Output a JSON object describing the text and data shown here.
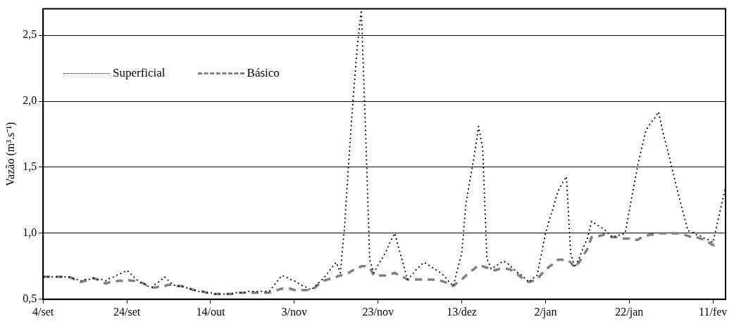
{
  "chart_data": {
    "type": "line",
    "ylabel": "Vazão (m³.s⁻¹)",
    "ylim": [
      0.5,
      2.7
    ],
    "categories": [
      "4/set",
      null,
      null,
      null,
      null,
      null,
      null,
      null,
      null,
      null,
      null,
      null,
      null,
      null,
      null,
      null,
      null,
      null,
      null,
      null,
      "24/set",
      null,
      null,
      null,
      null,
      null,
      null,
      null,
      null,
      null,
      null,
      null,
      null,
      null,
      null,
      null,
      null,
      null,
      null,
      null,
      "14/out",
      null,
      null,
      null,
      null,
      null,
      null,
      null,
      null,
      null,
      null,
      null,
      null,
      null,
      null,
      null,
      null,
      null,
      null,
      null,
      "3/nov",
      null,
      null,
      null,
      null,
      null,
      null,
      null,
      null,
      null,
      null,
      null,
      null,
      null,
      null,
      null,
      null,
      null,
      null,
      null,
      "23/nov",
      null,
      null,
      null,
      null,
      null,
      null,
      null,
      null,
      null,
      null,
      null,
      null,
      null,
      null,
      null,
      null,
      null,
      null,
      null,
      "13/dez",
      null,
      null,
      null,
      null,
      null,
      null,
      null,
      null,
      null,
      null,
      null,
      null,
      null,
      null,
      null,
      null,
      null,
      null,
      null,
      "2/jan",
      null,
      null,
      null,
      null,
      null,
      null,
      null,
      null,
      null,
      null,
      null,
      null,
      null,
      null,
      null,
      null,
      null,
      null,
      null,
      "22/jan",
      null,
      null,
      null,
      null,
      null,
      null,
      null,
      null,
      null,
      null,
      null,
      null,
      null,
      null,
      null,
      null,
      null,
      null,
      null,
      "11/fev",
      null,
      null,
      null
    ],
    "yticks": [
      {
        "value": 0.5,
        "label": "0,5"
      },
      {
        "value": 1,
        "label": "1,0"
      },
      {
        "value": 1.5,
        "label": "1,5"
      },
      {
        "value": 2,
        "label": "2,0"
      },
      {
        "value": 2.5,
        "label": "2,5"
      }
    ],
    "grid": "y",
    "legend": "top left",
    "marker": "none",
    "series": [
      {
        "name": "Superficial",
        "color": "#000000",
        "line_style": "dotted",
        "values": [
          0.67,
          0.67,
          0.67,
          0.67,
          0.67,
          0.67,
          0.67,
          0.66,
          0.65,
          0.64,
          0.65,
          0.65,
          0.66,
          0.65,
          0.65,
          0.64,
          0.66,
          0.67,
          0.69,
          0.7,
          0.72,
          0.69,
          0.66,
          0.63,
          0.62,
          0.6,
          0.59,
          0.62,
          0.64,
          0.67,
          0.64,
          0.61,
          0.6,
          0.6,
          0.59,
          0.58,
          0.57,
          0.56,
          0.56,
          0.55,
          0.55,
          0.54,
          0.54,
          0.54,
          0.54,
          0.54,
          0.55,
          0.55,
          0.55,
          0.56,
          0.56,
          0.56,
          0.56,
          0.56,
          0.56,
          0.6,
          0.64,
          0.68,
          0.67,
          0.65,
          0.64,
          0.62,
          0.6,
          0.59,
          0.57,
          0.6,
          0.63,
          0.66,
          0.7,
          0.74,
          0.78,
          0.7,
          1.05,
          1.54,
          2.0,
          2.4,
          2.69,
          1.8,
          0.8,
          0.7,
          0.76,
          0.81,
          0.87,
          0.94,
          1.0,
          0.88,
          0.77,
          0.65,
          0.68,
          0.72,
          0.75,
          0.78,
          0.76,
          0.74,
          0.72,
          0.7,
          0.67,
          0.63,
          0.6,
          0.73,
          0.85,
          1.23,
          1.41,
          1.59,
          1.81,
          1.64,
          0.81,
          0.73,
          0.75,
          0.77,
          0.79,
          0.77,
          0.74,
          0.71,
          0.69,
          0.66,
          0.63,
          0.66,
          0.68,
          0.84,
          1.0,
          1.11,
          1.21,
          1.32,
          1.38,
          1.43,
          0.85,
          0.74,
          0.81,
          0.89,
          0.96,
          1.09,
          1.07,
          1.05,
          1.03,
          1.0,
          0.97,
          0.98,
          0.99,
          1.0,
          1.17,
          1.34,
          1.51,
          1.65,
          1.78,
          1.83,
          1.87,
          1.92,
          1.77,
          1.65,
          1.52,
          1.39,
          1.26,
          1.14,
          1.02,
          1.01,
          0.99,
          0.98,
          0.96,
          0.95,
          0.93,
          1.07,
          1.21,
          1.35
        ]
      },
      {
        "name": "Básico",
        "color": "#808080",
        "line_style": "dashed",
        "values": [
          0.67,
          0.67,
          0.67,
          0.67,
          0.67,
          0.67,
          0.67,
          0.66,
          0.64,
          0.63,
          0.64,
          0.65,
          0.66,
          0.65,
          0.63,
          0.62,
          0.63,
          0.63,
          0.64,
          0.64,
          0.65,
          0.64,
          0.64,
          0.63,
          0.62,
          0.6,
          0.59,
          0.59,
          0.6,
          0.6,
          0.61,
          0.61,
          0.6,
          0.6,
          0.59,
          0.58,
          0.57,
          0.56,
          0.56,
          0.55,
          0.55,
          0.54,
          0.54,
          0.54,
          0.54,
          0.54,
          0.55,
          0.55,
          0.55,
          0.55,
          0.55,
          0.55,
          0.55,
          0.55,
          0.55,
          0.56,
          0.57,
          0.58,
          0.58,
          0.58,
          0.57,
          0.57,
          0.57,
          0.57,
          0.57,
          0.59,
          0.62,
          0.64,
          0.65,
          0.66,
          0.67,
          0.68,
          0.69,
          0.7,
          0.72,
          0.73,
          0.75,
          0.75,
          0.74,
          0.68,
          0.68,
          0.68,
          0.68,
          0.69,
          0.7,
          0.68,
          0.67,
          0.65,
          0.65,
          0.65,
          0.65,
          0.65,
          0.65,
          0.65,
          0.64,
          0.64,
          0.63,
          0.61,
          0.6,
          0.63,
          0.65,
          0.68,
          0.71,
          0.73,
          0.76,
          0.75,
          0.74,
          0.72,
          0.72,
          0.73,
          0.73,
          0.73,
          0.72,
          0.7,
          0.67,
          0.65,
          0.63,
          0.64,
          0.65,
          0.69,
          0.72,
          0.75,
          0.77,
          0.8,
          0.8,
          0.8,
          0.78,
          0.74,
          0.78,
          0.83,
          0.88,
          0.97,
          0.98,
          0.98,
          0.99,
          0.98,
          0.97,
          0.97,
          0.96,
          0.96,
          0.96,
          0.95,
          0.95,
          0.97,
          0.98,
          0.99,
          0.99,
          1.0,
          1.0,
          1.0,
          1.0,
          1.0,
          1.0,
          0.99,
          0.98,
          0.97,
          0.97,
          0.96,
          0.95,
          0.93,
          0.91,
          0.92,
          null,
          null
        ]
      }
    ]
  }
}
